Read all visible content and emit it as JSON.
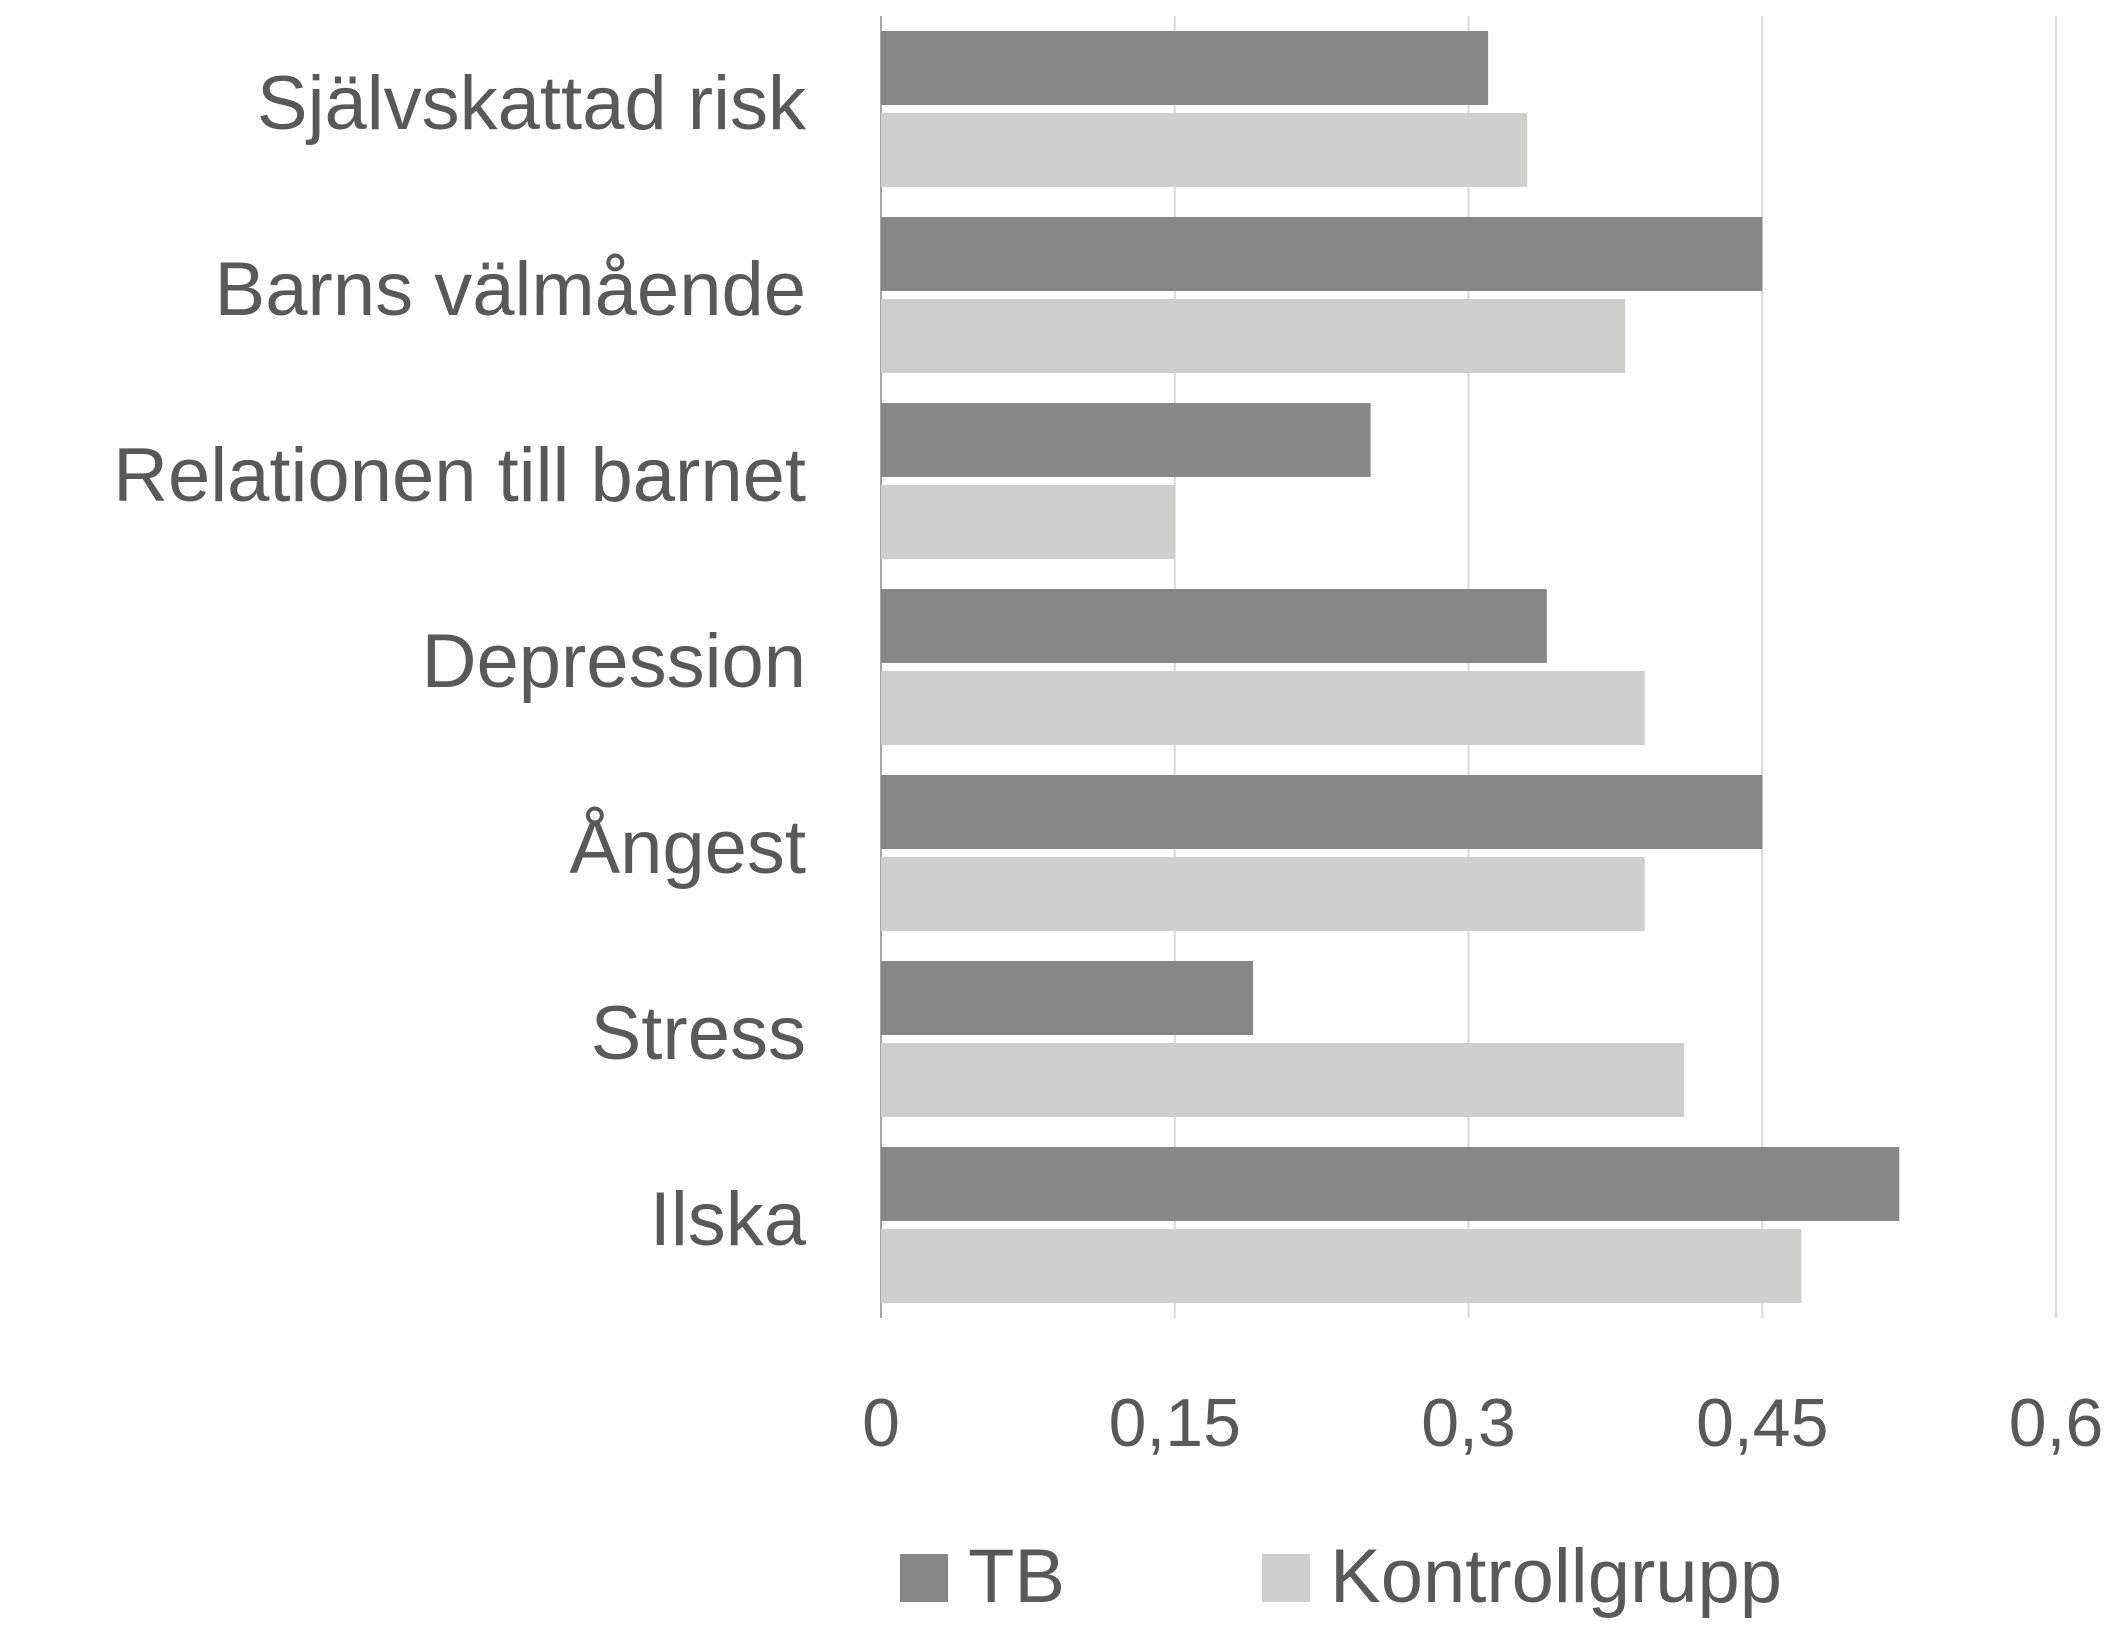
{
  "chart_data": {
    "type": "hbar",
    "categories": [
      "Självskattad risk",
      "Barns välmående",
      "Relationen till barnet",
      "Depression",
      "Ångest",
      "Stress",
      "Ilska"
    ],
    "series": [
      {
        "name": "TB",
        "color": "#878787",
        "values": [
          0.31,
          0.45,
          0.25,
          0.34,
          0.45,
          0.19,
          0.52
        ]
      },
      {
        "name": "Kontrollgrupp",
        "color": "#cfcfce",
        "values": [
          0.33,
          0.38,
          0.15,
          0.39,
          0.39,
          0.41,
          0.47
        ]
      }
    ],
    "xlim": [
      0,
      0.6
    ],
    "xticks": [
      0,
      {
        "value": 0.15,
        "label": "0,15"
      },
      {
        "value": 0.3,
        "label": "0,3"
      },
      {
        "value": 0.45,
        "label": "0,45"
      },
      {
        "value": 0.6,
        "label": "0,6"
      }
    ],
    "grid": true,
    "legend": "bottom"
  }
}
